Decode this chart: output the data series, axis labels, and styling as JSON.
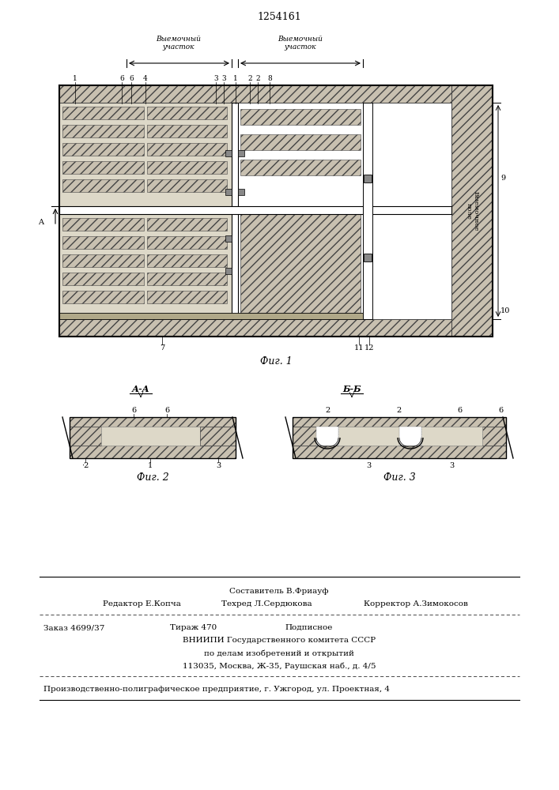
{
  "patent_number": "1254161",
  "fig1_title": "Фиг. 1",
  "fig2_title": "Фиг. 2",
  "fig3_title": "Фиг. 3",
  "label_viem_pole": "Выемочное\nполе",
  "label_viem_uch": "Выемочный\nучасток",
  "footer_composer": "Составитель В.Фриауф",
  "footer_editor": "Редактор Е.Копча",
  "footer_tech": "Техред Л.Сердюкова",
  "footer_corrector": "Корректор А.Зимокосов",
  "footer_order": "Заказ 4699/37",
  "footer_tirazh": "Тираж 470",
  "footer_podp": "Подписное",
  "footer_vniip": "ВНИИПИ Государственного комитета СССР",
  "footer_po": "по делам изобретений и открытий",
  "footer_addr": "113035, Москва, Ж-35, Раушская наб., д. 4/5",
  "footer_prod": "Производственно-полиграфическое предприятие, г. Ужгород, ул. Проектная, 4"
}
